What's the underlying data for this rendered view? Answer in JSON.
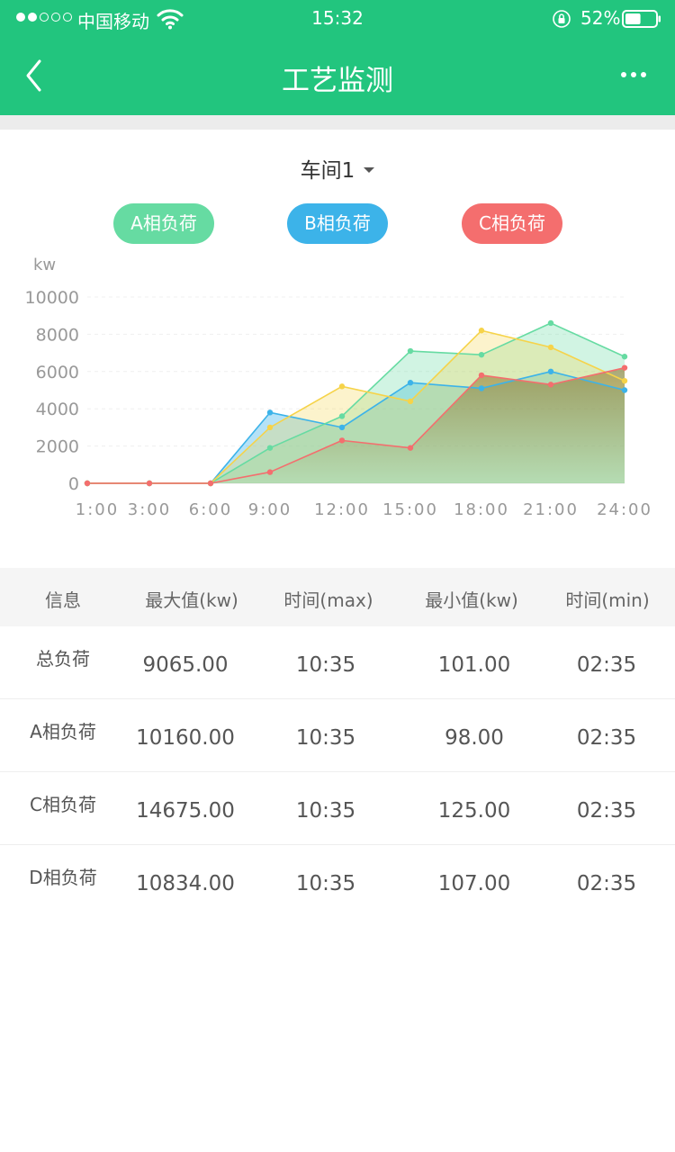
{
  "status_bar": {
    "carrier": "中国移动",
    "time": "15:32",
    "battery": "52%",
    "battery_level": 0.52
  },
  "nav": {
    "title": "工艺监测",
    "back_icon": "chevron-left-icon",
    "more_icon": "more-dots-icon"
  },
  "selector": {
    "label": "车间1"
  },
  "legend": [
    {
      "label": "A相负荷",
      "color": "#66dba2"
    },
    {
      "label": "B相负荷",
      "color": "#3cb3e9"
    },
    {
      "label": "C相负荷",
      "color": "#f46e6e"
    }
  ],
  "chart_data": {
    "type": "area",
    "ylabel": "kw",
    "ylim": [
      0,
      10000
    ],
    "yticks": [
      "10000",
      "8000",
      "6000",
      "4000",
      "2000",
      "0"
    ],
    "xticks": [
      "1:00",
      "3:00",
      "6:00",
      "9:00",
      "12:00",
      "15:00",
      "18:00",
      "21:00",
      "24:00"
    ],
    "series": [
      {
        "color": "#3cb3e9",
        "values": [
          0,
          0,
          0,
          3800,
          3000,
          5400,
          5100,
          6000,
          5000
        ]
      },
      {
        "color": "#66dba2",
        "values": [
          0,
          0,
          0,
          1900,
          3600,
          7100,
          6900,
          8600,
          6800
        ]
      },
      {
        "color": "#f6d349",
        "values": [
          0,
          0,
          0,
          3000,
          5200,
          4400,
          8200,
          7300,
          5500
        ]
      },
      {
        "color": "#f46e6e",
        "values": [
          0,
          0,
          0,
          600,
          2300,
          1900,
          5800,
          5300,
          6200
        ]
      }
    ]
  },
  "table": {
    "headers": [
      "信息",
      "最大值(kw)",
      "时间(max)",
      "最小值(kw)",
      "时间(min)"
    ],
    "rows": [
      [
        "总负荷",
        "9065.00",
        "10:35",
        "101.00",
        "02:35"
      ],
      [
        "A相负荷",
        "10160.00",
        "10:35",
        "98.00",
        "02:35"
      ],
      [
        "C相负荷",
        "14675.00",
        "10:35",
        "125.00",
        "02:35"
      ],
      [
        "D相负荷",
        "10834.00",
        "10:35",
        "107.00",
        "02:35"
      ]
    ]
  }
}
